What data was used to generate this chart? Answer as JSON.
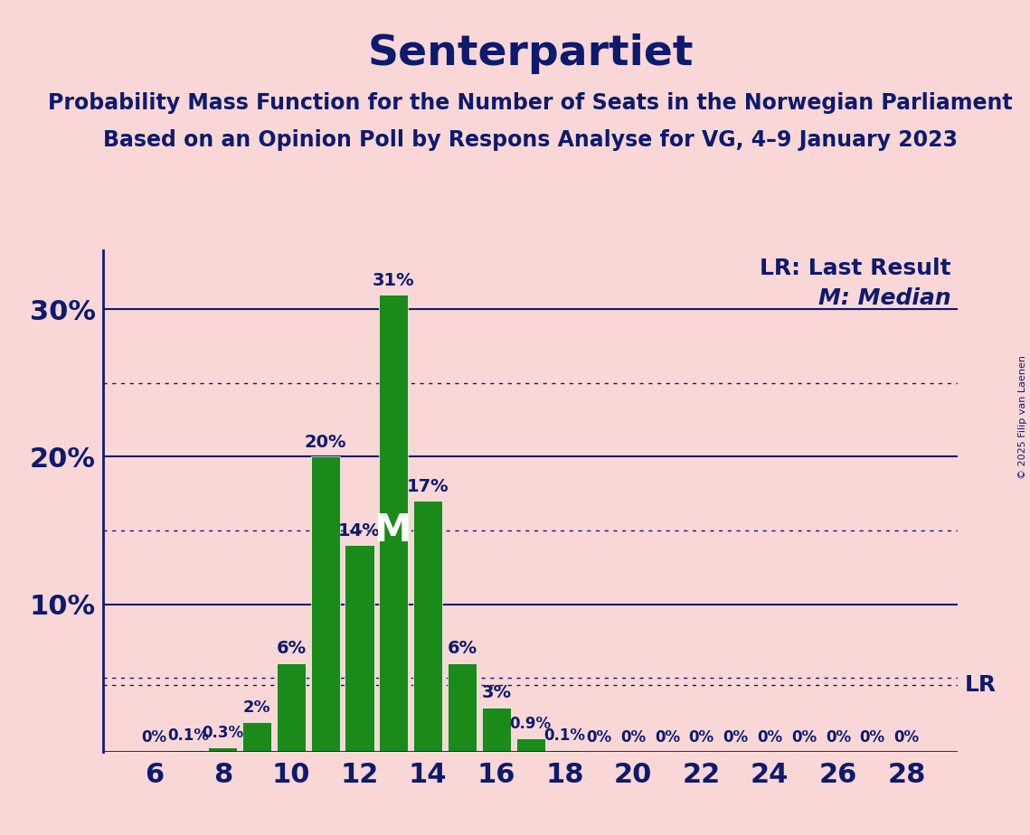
{
  "title": "Senterpartiet",
  "subtitle1": "Probability Mass Function for the Number of Seats in the Norwegian Parliament",
  "subtitle2": "Based on an Opinion Poll by Respons Analyse for VG, 4–9 January 2023",
  "copyright": "© 2025 Filip van Laenen",
  "seats": [
    6,
    7,
    8,
    9,
    10,
    11,
    12,
    13,
    14,
    15,
    16,
    17,
    18,
    19,
    20,
    21,
    22,
    23,
    24,
    25,
    26,
    27,
    28
  ],
  "probabilities": [
    0.0,
    0.1,
    0.3,
    2.0,
    6.0,
    20.0,
    14.0,
    31.0,
    17.0,
    6.0,
    3.0,
    0.9,
    0.1,
    0.0,
    0.0,
    0.0,
    0.0,
    0.0,
    0.0,
    0.0,
    0.0,
    0.0,
    0.0
  ],
  "bar_color": "#1a8a1a",
  "background_color": "#f9d7d7",
  "text_color": "#0d1a6e",
  "median_seat": 13,
  "lr_value": 4.5,
  "lr_label": "LR",
  "lr_legend": "LR: Last Result",
  "median_legend": "M: Median",
  "solid_gridlines": [
    10,
    20,
    30
  ],
  "dotted_gridlines": [
    5,
    15,
    25
  ],
  "ytick_positions": [
    10,
    20,
    30
  ],
  "ylim_max": 34,
  "xticks": [
    6,
    8,
    10,
    12,
    14,
    16,
    18,
    20,
    22,
    24,
    26,
    28
  ],
  "title_fontsize": 34,
  "subtitle_fontsize": 17,
  "tick_fontsize": 22,
  "bar_label_fontsize": 14,
  "legend_fontsize": 18,
  "median_fontsize": 30,
  "copyright_fontsize": 8
}
